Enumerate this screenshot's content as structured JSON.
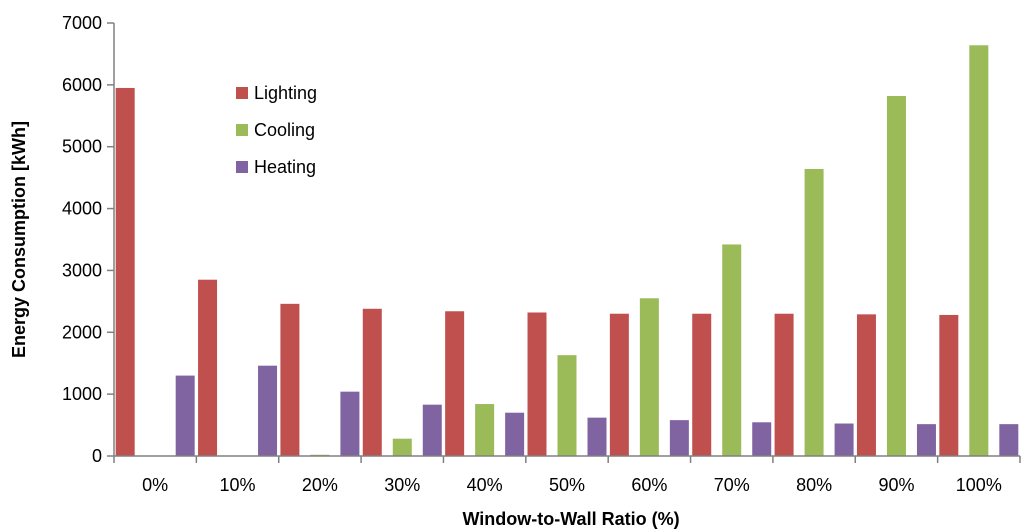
{
  "chart_data": {
    "type": "bar",
    "xlabel": "Window-to-Wall Ratio (%)",
    "ylabel": "Energy Consumption [kWh]",
    "categories": [
      "0%",
      "10%",
      "20%",
      "30%",
      "40%",
      "50%",
      "60%",
      "70%",
      "80%",
      "90%",
      "100%"
    ],
    "ylim": [
      0,
      7000
    ],
    "yticks": [
      0,
      1000,
      2000,
      3000,
      4000,
      5000,
      6000,
      7000
    ],
    "grid": false,
    "legend_position": "top-left",
    "series": [
      {
        "name": "Lighting",
        "color": "#c0504d",
        "values": [
          5950,
          2850,
          2460,
          2380,
          2340,
          2320,
          2300,
          2300,
          2300,
          2290,
          2280
        ]
      },
      {
        "name": "Cooling",
        "color": "#9bbb59",
        "values": [
          0,
          0,
          20,
          280,
          840,
          1630,
          2550,
          3420,
          4640,
          5820,
          6640
        ]
      },
      {
        "name": "Heating",
        "color": "#8064a2",
        "values": [
          1300,
          1460,
          1040,
          830,
          700,
          620,
          580,
          545,
          525,
          515,
          515
        ]
      }
    ]
  }
}
